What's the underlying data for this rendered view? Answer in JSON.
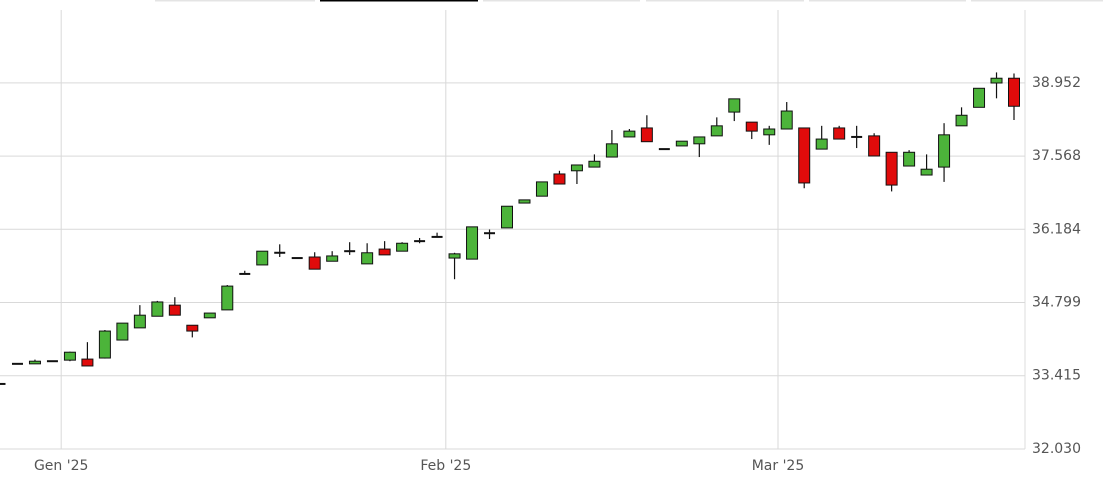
{
  "chart_data": {
    "type": "candlestick",
    "categories": [
      null,
      null,
      null,
      null,
      "Gen '25",
      null,
      null,
      null,
      null,
      null,
      null,
      null,
      null,
      null,
      null,
      null,
      null,
      null,
      null,
      null,
      null,
      null,
      null,
      null,
      null,
      null,
      "Feb '25",
      null,
      null,
      null,
      null,
      null,
      null,
      null,
      null,
      null,
      null,
      null,
      null,
      null,
      null,
      null,
      null,
      null,
      null,
      "Mar '25",
      null,
      null,
      null,
      null,
      null,
      null,
      null,
      null,
      null,
      null,
      null,
      null,
      null
    ],
    "open": [
      33.26,
      33.64,
      33.64,
      33.69,
      33.71,
      33.73,
      33.75,
      34.09,
      34.32,
      34.54,
      34.75,
      34.37,
      34.51,
      34.66,
      35.34,
      35.51,
      35.74,
      35.64,
      35.66,
      35.58,
      35.77,
      35.53,
      35.81,
      35.77,
      35.96,
      36.04,
      35.64,
      35.62,
      36.11,
      36.21,
      36.68,
      36.81,
      37.23,
      37.29,
      37.36,
      37.55,
      37.93,
      38.1,
      37.7,
      37.76,
      37.8,
      37.95,
      38.4,
      38.21,
      37.97,
      38.08,
      38.1,
      37.7,
      38.1,
      37.93,
      37.95,
      37.64,
      37.38,
      37.21,
      37.36,
      38.14,
      38.49,
      38.95,
      39.04
    ],
    "high": [
      33.26,
      33.64,
      33.72,
      33.69,
      33.87,
      34.05,
      34.28,
      34.41,
      34.75,
      34.83,
      34.9,
      34.37,
      34.6,
      35.13,
      35.4,
      35.77,
      35.9,
      35.64,
      35.75,
      35.77,
      35.94,
      35.92,
      35.96,
      35.94,
      36.02,
      36.12,
      35.74,
      36.23,
      36.18,
      36.62,
      36.74,
      37.08,
      37.29,
      37.4,
      37.6,
      38.06,
      38.08,
      38.34,
      37.7,
      37.85,
      37.93,
      38.3,
      38.65,
      38.21,
      38.14,
      38.59,
      38.1,
      38.14,
      38.14,
      38.14,
      38,
      37.64,
      37.68,
      37.6,
      38.19,
      38.49,
      38.85,
      39.15,
      39.13
    ],
    "low": [
      33.26,
      33.64,
      33.64,
      33.69,
      33.69,
      33.6,
      33.74,
      34.09,
      34.32,
      34.54,
      34.56,
      34.14,
      34.51,
      34.66,
      35.34,
      35.51,
      35.66,
      35.64,
      35.43,
      35.58,
      35.7,
      35.53,
      35.7,
      35.77,
      35.92,
      36.04,
      35.24,
      35.62,
      36,
      36.21,
      36.68,
      36.81,
      37.04,
      37.04,
      37.36,
      37.55,
      37.93,
      37.84,
      37.7,
      37.76,
      37.55,
      37.95,
      38.23,
      37.89,
      37.78,
      38.08,
      36.96,
      37.7,
      37.89,
      37.72,
      37.57,
      36.9,
      37.38,
      37.21,
      37.08,
      38.14,
      38.49,
      38.66,
      38.25
    ],
    "close": [
      33.26,
      33.64,
      33.69,
      33.69,
      33.86,
      33.6,
      34.26,
      34.41,
      34.56,
      34.81,
      34.56,
      34.26,
      34.6,
      35.11,
      35.34,
      35.77,
      35.74,
      35.64,
      35.43,
      35.68,
      35.77,
      35.74,
      35.7,
      35.92,
      35.96,
      36.04,
      35.72,
      36.23,
      36.11,
      36.62,
      36.74,
      37.08,
      37.04,
      37.4,
      37.47,
      37.8,
      38.04,
      37.84,
      37.7,
      37.85,
      37.93,
      38.14,
      38.65,
      38.04,
      38.08,
      38.42,
      37.06,
      37.89,
      37.89,
      37.93,
      37.57,
      37.02,
      37.64,
      37.32,
      37.97,
      38.34,
      38.85,
      39.04,
      38.51
    ],
    "up_color": "#4cb43a",
    "down_color": "#e00b0b",
    "ylim": [
      32.03,
      40.33
    ],
    "yticks": [
      {
        "value": 32.03,
        "label": "32.030"
      },
      33.415,
      34.799,
      36.184,
      37.568,
      38.952
    ],
    "grid": true
  }
}
